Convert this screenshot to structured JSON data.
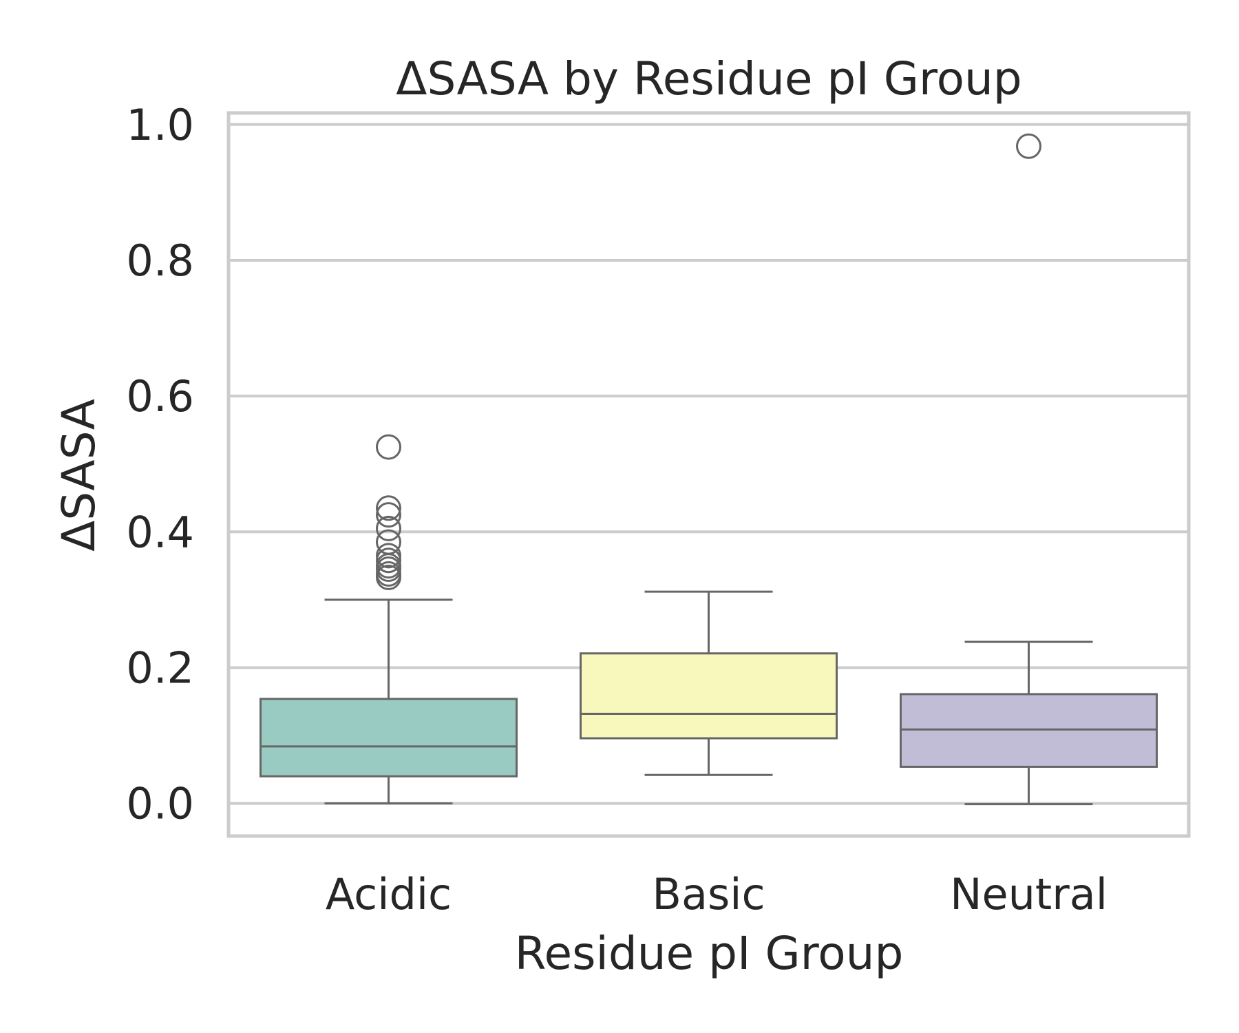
{
  "chart_data": {
    "type": "box",
    "title": "ΔSASA by Residue pI Group",
    "xlabel": "Residue pI Group",
    "ylabel": "ΔSASA",
    "ylim": [
      -0.048,
      1.017
    ],
    "yticks": [
      "0.0",
      "0.2",
      "0.4",
      "0.6",
      "0.8",
      "1.0"
    ],
    "grid": true,
    "categories": [
      "Acidic",
      "Basic",
      "Neutral"
    ],
    "colors": [
      "#99cbc3",
      "#f8f7bc",
      "#c1bdd7"
    ],
    "edge_color": "#666666",
    "grid_color": "#cccccc",
    "series": [
      {
        "whisker_low": 0.0,
        "q1": 0.04,
        "median": 0.084,
        "q3": 0.154,
        "whisker_high": 0.3,
        "outliers": [
          0.525,
          0.435,
          0.425,
          0.405,
          0.385,
          0.365,
          0.358,
          0.35,
          0.345,
          0.338,
          0.333
        ]
      },
      {
        "whisker_low": 0.042,
        "q1": 0.096,
        "median": 0.132,
        "q3": 0.221,
        "whisker_high": 0.312,
        "outliers": []
      },
      {
        "whisker_low": -0.001,
        "q1": 0.054,
        "median": 0.109,
        "q3": 0.161,
        "whisker_high": 0.238,
        "outliers": [
          0.968
        ]
      }
    ]
  }
}
